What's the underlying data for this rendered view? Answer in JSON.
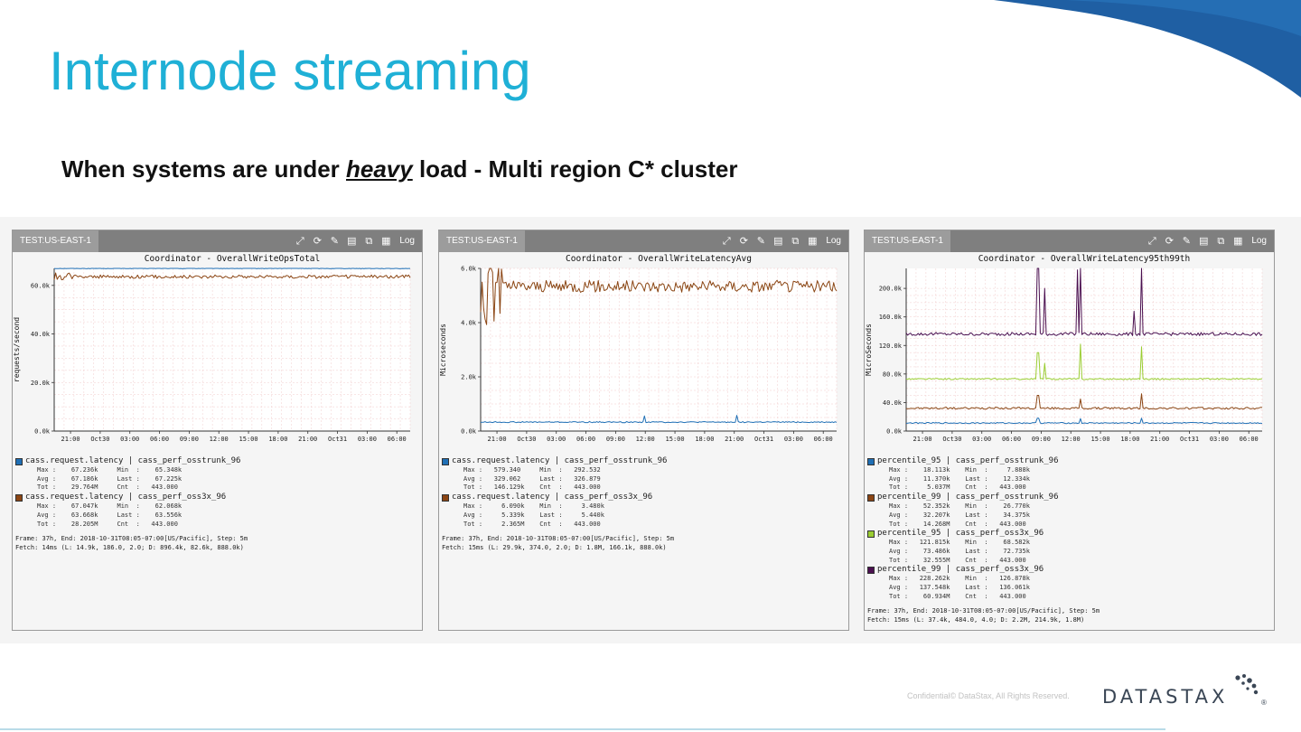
{
  "slide": {
    "title": "Internode streaming",
    "subtitle_pre": "When systems are under ",
    "subtitle_em": "heavy",
    "subtitle_post": " load - Multi region C* cluster",
    "footer": "Confidential© DataStax, All Rights Reserved.",
    "logo": "DATASTAX",
    "logo_mark": "®",
    "colors": {
      "title": "#1fb0d6",
      "swoosh": "#1f5fa3"
    }
  },
  "toolbar": {
    "icons": [
      "expand-icon",
      "refresh-icon",
      "magic-wand-icon",
      "save-icon",
      "external-link-icon",
      "grid-icon"
    ],
    "log_label": "Log"
  },
  "panels": [
    {
      "tag": "TEST:US-EAST-1",
      "legend": [
        {
          "name": "cass.request.latency | cass_perf_osstrunk_96",
          "color": "#1f6fb5",
          "stats": [
            "Max :    67.236k     Min  :    65.348k",
            "Avg :    67.186k     Last :    67.225k",
            "Tot :    29.764M     Cnt  :   443.000"
          ]
        },
        {
          "name": "cass.request.latency | cass_perf_oss3x_96",
          "color": "#8b4513",
          "stats": [
            "Max :    67.047k     Min  :    62.068k",
            "Avg :    63.668k     Last :    63.556k",
            "Tot :    28.205M     Cnt  :   443.000"
          ]
        }
      ],
      "frame": [
        "Frame: 37h, End: 2018-10-31T08:05-07:00[US/Pacific], Step: 5m",
        "Fetch: 14ms (L: 14.9k, 186.0, 2.0; D: 896.4k, 82.6k, 888.0k)"
      ]
    },
    {
      "tag": "TEST:US-EAST-1",
      "legend": [
        {
          "name": "cass.request.latency | cass_perf_osstrunk_96",
          "color": "#1f6fb5",
          "stats": [
            "Max :   579.340     Min  :   292.532",
            "Avg :   329.062     Last :   326.879",
            "Tot :   146.129k    Cnt  :   443.000"
          ]
        },
        {
          "name": "cass.request.latency | cass_perf_oss3x_96",
          "color": "#8b4513",
          "stats": [
            "Max :     6.090k    Min  :     3.480k",
            "Avg :     5.339k    Last :     5.440k",
            "Tot :     2.365M    Cnt  :   443.000"
          ]
        }
      ],
      "frame": [
        "Frame: 37h, End: 2018-10-31T08:05-07:00[US/Pacific], Step: 5m",
        "Fetch: 15ms (L: 29.9k, 374.0, 2.0; D: 1.8M, 166.1k, 888.0k)"
      ]
    },
    {
      "tag": "TEST:US-EAST-1",
      "legend": [
        {
          "name": "percentile_95 | cass_perf_osstrunk_96",
          "color": "#1f6fb5",
          "stats": [
            "Max :    18.113k    Min  :     7.888k",
            "Avg :    11.370k    Last :    12.334k",
            "Tot :     5.037M    Cnt  :   443.000"
          ]
        },
        {
          "name": "percentile_99 | cass_perf_osstrunk_96",
          "color": "#8b4513",
          "stats": [
            "Max :    52.352k    Min  :    26.770k",
            "Avg :    32.207k    Last :    34.375k",
            "Tot :    14.268M    Cnt  :   443.000"
          ]
        },
        {
          "name": "percentile_95 | cass_perf_oss3x_96",
          "color": "#9acd32",
          "stats": [
            "Max :   121.815k    Min  :    68.582k",
            "Avg :    73.486k    Last :    72.735k",
            "Tot :    32.555M    Cnt  :   443.000"
          ]
        },
        {
          "name": "percentile_99 | cass_perf_oss3x_96",
          "color": "#4b1050",
          "stats": [
            "Max :   228.262k    Min  :   126.878k",
            "Avg :   137.548k    Last :   136.061k",
            "Tot :    60.934M    Cnt  :   443.000"
          ]
        }
      ],
      "frame": [
        "Frame: 37h, End: 2018-10-31T08:05-07:00[US/Pacific], Step: 5m",
        "Fetch: 15ms (L: 37.4k, 484.0, 4.0; D: 2.2M, 214.9k, 1.8M)"
      ]
    }
  ],
  "chart_data": [
    {
      "type": "line",
      "title": "Coordinator - OverallWriteOpsTotal",
      "ylabel": "requests/second",
      "xlabel": "",
      "x_ticks": [
        "21:00",
        "Oct30",
        "03:00",
        "06:00",
        "09:00",
        "12:00",
        "15:00",
        "18:00",
        "21:00",
        "Oct31",
        "03:00",
        "06:00"
      ],
      "y_ticks": [
        "0.0k",
        "20.0k",
        "40.0k",
        "60.0k"
      ],
      "ylim": [
        0,
        67000
      ],
      "grid": true,
      "series": [
        {
          "name": "cass.request.latency | cass_perf_osstrunk_96",
          "color": "#1f6fb5",
          "base": 67000,
          "noise": 150,
          "spikes": [],
          "startup": 0
        },
        {
          "name": "cass.request.latency | cass_perf_oss3x_96",
          "color": "#8b4513",
          "base": 63600,
          "noise": 700,
          "spikes": [],
          "startup": 2000
        }
      ]
    },
    {
      "type": "line",
      "title": "Coordinator - OverallWriteLatencyAvg",
      "ylabel": "Microseconds",
      "xlabel": "",
      "x_ticks": [
        "21:00",
        "Oct30",
        "03:00",
        "06:00",
        "09:00",
        "12:00",
        "15:00",
        "18:00",
        "21:00",
        "Oct31",
        "03:00",
        "06:00"
      ],
      "y_ticks": [
        "0.0k",
        "2.0k",
        "4.0k",
        "6.0k"
      ],
      "ylim": [
        0,
        6000
      ],
      "grid": true,
      "series": [
        {
          "name": "cass.request.latency | cass_perf_osstrunk_96",
          "color": "#1f6fb5",
          "base": 330,
          "noise": 20,
          "spikes": [
            [
              0.46,
              560
            ],
            [
              0.72,
              580
            ]
          ],
          "startup": 0
        },
        {
          "name": "cass.request.latency | cass_perf_oss3x_96",
          "color": "#8b4513",
          "base": 5340,
          "noise": 220,
          "spikes": [],
          "startup": 1700
        }
      ]
    },
    {
      "type": "line",
      "title": "Coordinator - OverallWriteLatency95th99th",
      "ylabel": "MicroSeconds",
      "xlabel": "",
      "x_ticks": [
        "21:00",
        "Oct30",
        "03:00",
        "06:00",
        "09:00",
        "12:00",
        "15:00",
        "18:00",
        "21:00",
        "Oct31",
        "03:00",
        "06:00"
      ],
      "y_ticks": [
        "0.0k",
        "40.0k",
        "80.0k",
        "120.0k",
        "160.0k",
        "200.0k"
      ],
      "ylim": [
        0,
        228000
      ],
      "grid": true,
      "series": [
        {
          "name": "percentile_95 | cass_perf_osstrunk_96",
          "color": "#1f6fb5",
          "base": 11300,
          "noise": 800,
          "spikes": [
            [
              0.37,
              18000
            ],
            [
              0.49,
              17500
            ],
            [
              0.66,
              18100
            ]
          ],
          "startup": 0
        },
        {
          "name": "percentile_99 | cass_perf_osstrunk_96",
          "color": "#8b4513",
          "base": 32000,
          "noise": 1400,
          "spikes": [
            [
              0.37,
              50000
            ],
            [
              0.49,
              45000
            ],
            [
              0.66,
              52300
            ]
          ],
          "startup": 0
        },
        {
          "name": "percentile_95 | cass_perf_oss3x_96",
          "color": "#9acd32",
          "base": 73000,
          "noise": 1000,
          "spikes": [
            [
              0.37,
              110000
            ],
            [
              0.39,
              95000
            ],
            [
              0.49,
              121800
            ],
            [
              0.66,
              118000
            ]
          ],
          "startup": 0
        },
        {
          "name": "percentile_99 | cass_perf_oss3x_96",
          "color": "#4b1050",
          "base": 136000,
          "noise": 2200,
          "spikes": [
            [
              0.37,
              228000
            ],
            [
              0.39,
              200000
            ],
            [
              0.48,
              226000
            ],
            [
              0.49,
              228000
            ],
            [
              0.66,
              228200
            ],
            [
              0.64,
              168000
            ]
          ],
          "startup": 0
        }
      ]
    }
  ]
}
